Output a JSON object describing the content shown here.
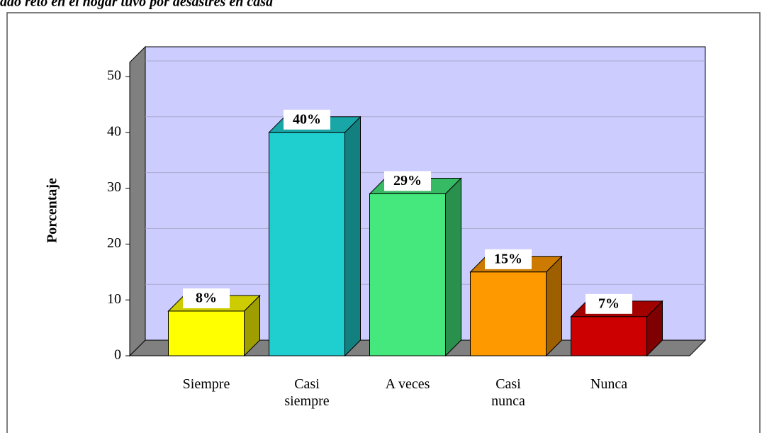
{
  "chart_data": {
    "type": "bar3d",
    "title": "ado reto en el hogar tuvo por desastres en casa",
    "y_label": "Porcentaje",
    "categories": [
      "Siempre",
      "Casi\nsiempre",
      "A veces",
      "Casi\nnunca",
      "Nunca"
    ],
    "values": [
      8,
      40,
      29,
      15,
      7
    ],
    "value_labels": [
      "8%",
      "40%",
      "29%",
      "15%",
      "7%"
    ],
    "colors": [
      "#ffff00",
      "#1fcfcf",
      "#44e87c",
      "#ff9900",
      "#cc0000"
    ],
    "ylim": [
      0,
      50
    ],
    "yticks": [
      0,
      10,
      20,
      30,
      40,
      50
    ],
    "grid": true
  }
}
